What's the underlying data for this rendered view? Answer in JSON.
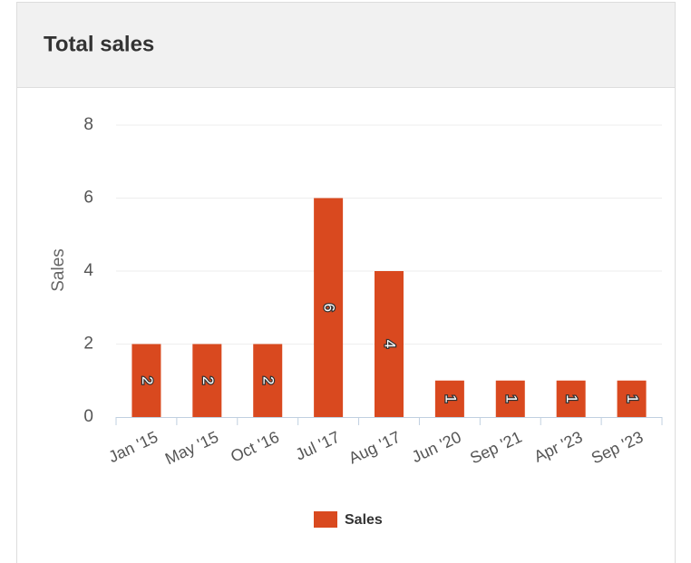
{
  "chart_data": {
    "type": "bar",
    "title": "Total sales",
    "y_label": "Sales",
    "categories": [
      "Jan '15",
      "May '15",
      "Oct '16",
      "Jul '17",
      "Aug '17",
      "Jun '20",
      "Sep '21",
      "Apr '23",
      "Sep '23"
    ],
    "series": [
      {
        "name": "Sales",
        "color": "#d9491f",
        "values": [
          2,
          2,
          2,
          6,
          4,
          1,
          1,
          1,
          1
        ]
      }
    ],
    "ylim": [
      0,
      8
    ],
    "yticks": [
      0,
      2,
      4,
      6,
      8
    ],
    "grid": true,
    "data_labels": true,
    "legend": "bottom"
  }
}
